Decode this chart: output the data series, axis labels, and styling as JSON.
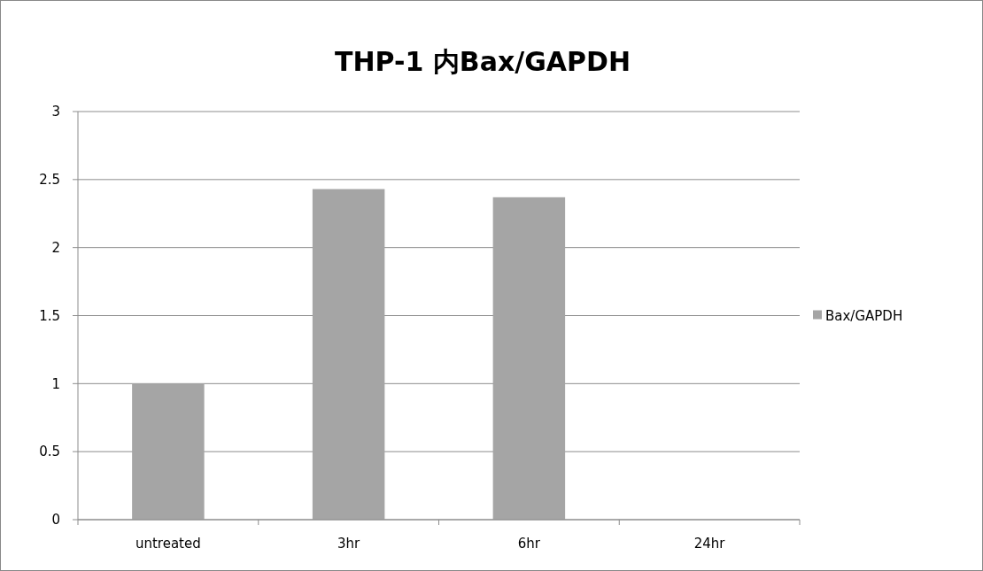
{
  "chart_data": {
    "type": "bar",
    "title": "THP-1 内Bax/GAPDH",
    "categories": [
      "untreated",
      "3hr",
      "6hr",
      "24hr"
    ],
    "series": [
      {
        "name": "Bax/GAPDH",
        "color": "#a5a5a5",
        "values": [
          1,
          2.43,
          2.37,
          0
        ]
      }
    ],
    "ylim": [
      0,
      3
    ],
    "yticks": [
      0,
      0.5,
      1,
      1.5,
      2,
      2.5,
      3
    ],
    "grid": "y",
    "legend": "right"
  }
}
